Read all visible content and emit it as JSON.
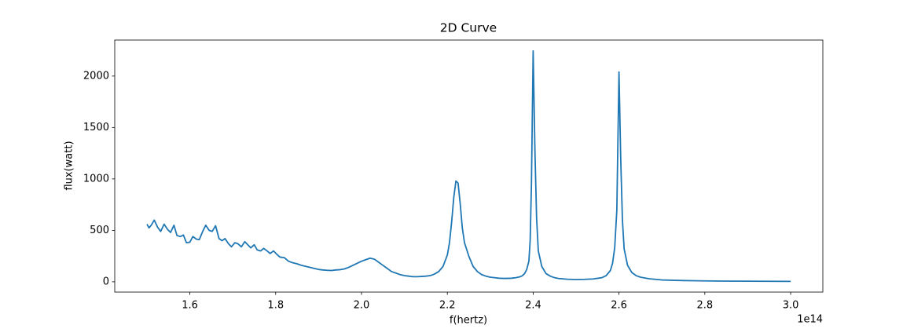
{
  "chart_data": {
    "type": "line",
    "title": "2D Curve",
    "x_label": "f(hertz)",
    "y_label": "flux(watt)",
    "x_offset_label": "1e14",
    "color": "#1f77b4",
    "x": [
      1.5,
      1.505,
      1.51,
      1.517,
      1.525,
      1.532,
      1.54,
      1.548,
      1.555,
      1.563,
      1.57,
      1.578,
      1.585,
      1.592,
      1.6,
      1.607,
      1.615,
      1.622,
      1.63,
      1.637,
      1.645,
      1.652,
      1.66,
      1.668,
      1.675,
      1.682,
      1.69,
      1.697,
      1.705,
      1.712,
      1.72,
      1.728,
      1.735,
      1.742,
      1.75,
      1.757,
      1.765,
      1.772,
      1.78,
      1.787,
      1.795,
      1.802,
      1.81,
      1.82,
      1.83,
      1.84,
      1.85,
      1.86,
      1.87,
      1.88,
      1.89,
      1.9,
      1.91,
      1.92,
      1.93,
      1.94,
      1.95,
      1.96,
      1.97,
      1.98,
      1.99,
      2.0,
      2.01,
      2.02,
      2.03,
      2.04,
      2.05,
      2.06,
      2.07,
      2.08,
      2.09,
      2.1,
      2.11,
      2.12,
      2.13,
      2.14,
      2.15,
      2.16,
      2.17,
      2.18,
      2.19,
      2.2,
      2.205,
      2.21,
      2.215,
      2.22,
      2.225,
      2.23,
      2.235,
      2.24,
      2.25,
      2.26,
      2.27,
      2.28,
      2.29,
      2.3,
      2.31,
      2.32,
      2.33,
      2.34,
      2.35,
      2.36,
      2.37,
      2.375,
      2.38,
      2.385,
      2.39,
      2.393,
      2.396,
      2.4,
      2.404,
      2.408,
      2.412,
      2.42,
      2.43,
      2.44,
      2.45,
      2.46,
      2.48,
      2.5,
      2.52,
      2.54,
      2.56,
      2.57,
      2.58,
      2.585,
      2.59,
      2.595,
      2.6,
      2.604,
      2.608,
      2.612,
      2.62,
      2.63,
      2.64,
      2.65,
      2.67,
      2.7,
      2.75,
      2.8,
      2.85,
      2.9,
      2.95,
      3.0
    ],
    "y": [
      560,
      525,
      550,
      600,
      530,
      490,
      560,
      510,
      480,
      550,
      450,
      440,
      455,
      380,
      385,
      440,
      415,
      410,
      490,
      550,
      500,
      490,
      545,
      420,
      400,
      420,
      370,
      340,
      380,
      370,
      340,
      390,
      360,
      330,
      360,
      310,
      300,
      325,
      300,
      275,
      300,
      270,
      240,
      235,
      200,
      185,
      175,
      160,
      150,
      140,
      130,
      120,
      115,
      112,
      110,
      115,
      118,
      125,
      140,
      160,
      180,
      200,
      215,
      230,
      220,
      190,
      160,
      130,
      100,
      85,
      70,
      60,
      55,
      50,
      50,
      52,
      55,
      60,
      75,
      100,
      150,
      260,
      380,
      580,
      820,
      980,
      960,
      760,
      520,
      380,
      250,
      150,
      100,
      70,
      55,
      45,
      40,
      35,
      33,
      33,
      35,
      40,
      50,
      60,
      80,
      120,
      200,
      400,
      950,
      2245,
      1300,
      620,
      300,
      150,
      80,
      55,
      40,
      32,
      25,
      22,
      24,
      28,
      40,
      60,
      110,
      180,
      330,
      700,
      2040,
      1200,
      600,
      320,
      160,
      90,
      60,
      45,
      30,
      18,
      12,
      9,
      7,
      6,
      5,
      4
    ],
    "xlim": [
      1.425,
      3.075
    ],
    "ylim": [
      -100,
      2350
    ],
    "xticks": [
      {
        "value": 1.6,
        "label": "1.6"
      },
      {
        "value": 1.8,
        "label": "1.8"
      },
      {
        "value": 2.0,
        "label": "2.0"
      },
      {
        "value": 2.2,
        "label": "2.2"
      },
      {
        "value": 2.4,
        "label": "2.4"
      },
      {
        "value": 2.6,
        "label": "2.6"
      },
      {
        "value": 2.8,
        "label": "2.8"
      },
      {
        "value": 3.0,
        "label": "3.0"
      }
    ],
    "yticks": [
      0,
      500,
      1000,
      1500,
      2000
    ],
    "grid": false
  }
}
